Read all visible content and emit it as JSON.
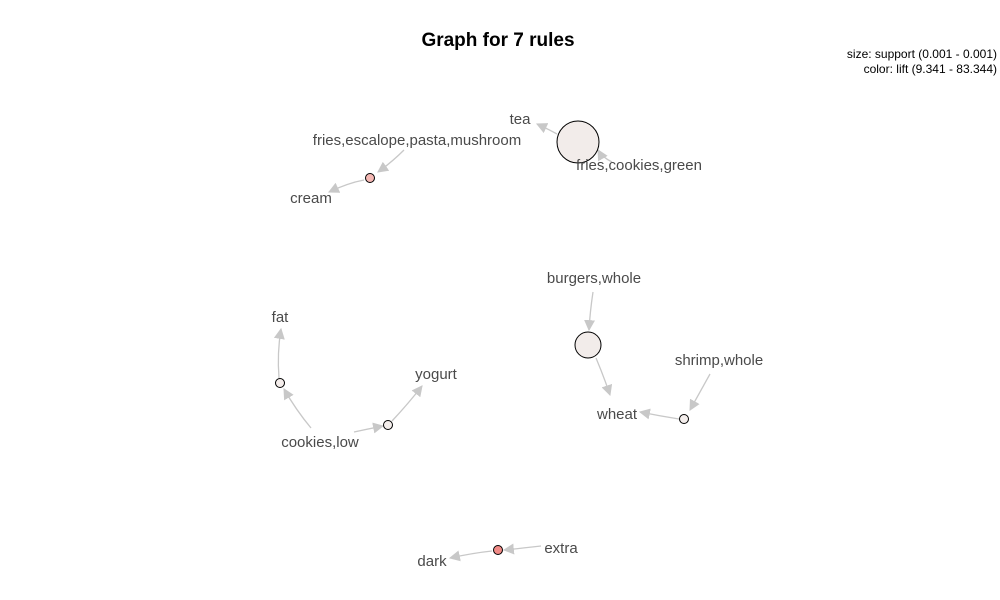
{
  "title": "Graph for 7 rules",
  "legend": {
    "size": "size: support (0.001 - 0.001)",
    "color": "color: lift (9.341 - 83.344)"
  },
  "colors": {
    "edge": "#c8c8c8",
    "node_stroke": "#000000",
    "label": "#4a4a4a"
  },
  "items": {
    "tea": "tea",
    "fries_cookies_green": "fries,cookies,green",
    "fries_escalope": "fries,escalope,pasta,mushroom",
    "cream": "cream",
    "burgers_whole": "burgers,whole",
    "shrimp_whole": "shrimp,whole",
    "wheat": "wheat",
    "fat": "fat",
    "yogurt": "yogurt",
    "cookies_low": "cookies,low",
    "dark": "dark",
    "extra": "extra"
  },
  "rules": [
    {
      "lhs": [
        "fries,cookies,green"
      ],
      "rhs": "tea",
      "support": "high",
      "fill": "#f2ecea"
    },
    {
      "lhs": [
        "fries,escalope,pasta,mushroom"
      ],
      "rhs": "cream",
      "support": "low",
      "fill": "#f5b8b4"
    },
    {
      "lhs": [
        "burgers,whole"
      ],
      "rhs": "wheat",
      "support": "high",
      "fill": "#f2ecea"
    },
    {
      "lhs": [
        "shrimp,whole"
      ],
      "rhs": "wheat",
      "support": "low",
      "fill": "#f4eeec"
    },
    {
      "lhs": [
        "cookies,low"
      ],
      "rhs": "fat",
      "support": "low",
      "fill": "#f4edeb"
    },
    {
      "lhs": [
        "cookies,low"
      ],
      "rhs": "yogurt",
      "support": "low",
      "fill": "#f4eeec"
    },
    {
      "lhs": [
        "extra"
      ],
      "rhs": "dark",
      "support": "low",
      "fill": "#f08a86"
    }
  ]
}
